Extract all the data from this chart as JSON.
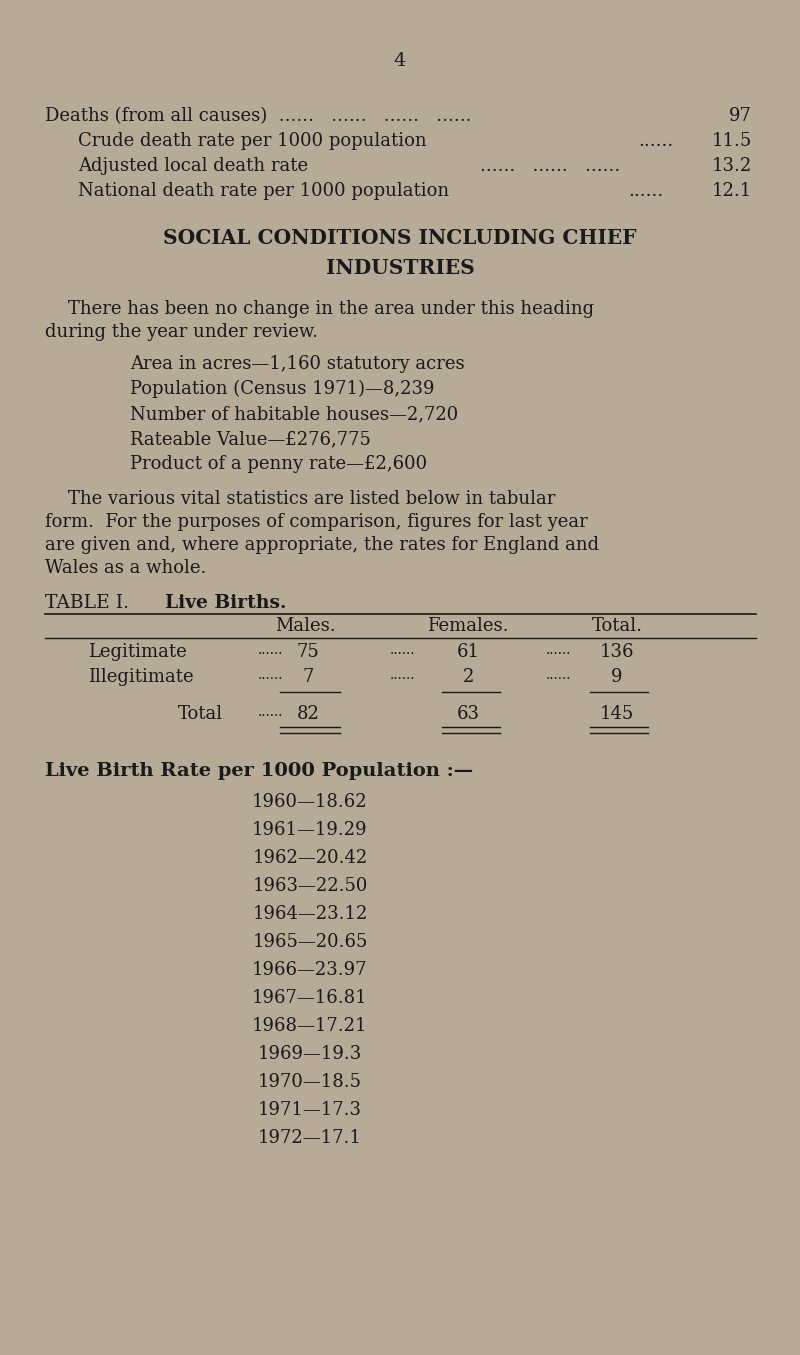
{
  "bg_color": "#b5ab96",
  "text_color": "#1a1a1a",
  "page_number": "4",
  "section_heading_line1": "SOCIAL CONDITIONS INCLUDING CHIEF",
  "section_heading_line2": "INDUSTRIES",
  "social_stats": [
    "Area in acres—1,160 statutory acres",
    "Population (Census 1971)—8,239",
    "Number of habitable houses—2,720",
    "Rateable Value—£276,775",
    "Product of a penny rate—£2,600"
  ],
  "birth_rate_heading": "Live Birth Rate per 1000 Population :—",
  "birth_rates": [
    "1960—18.62",
    "1961—19.29",
    "1962—20.42",
    "1963—22.50",
    "1964—23.12",
    "1965—20.65",
    "1966—23.97",
    "1967—16.81",
    "1968—17.21",
    "1969—19.3",
    "1970—18.5",
    "1971—17.3",
    "1972—17.1"
  ]
}
